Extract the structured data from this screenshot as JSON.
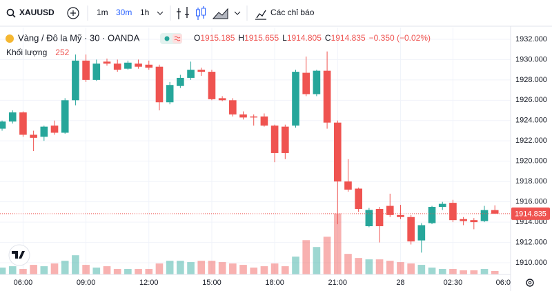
{
  "chart_data": {
    "type": "candlestick",
    "symbol": "XAUUSD",
    "intervals": [
      "1m",
      "30m",
      "1h"
    ],
    "indicators_label": "Các chỉ báo",
    "title": "Vàng / Đô la Mỹ · 30 · OANDA",
    "legend_keys": [
      "O",
      "H",
      "L",
      "C"
    ],
    "change_label": "−0.350 (−0.02%)",
    "volume_label": "Khối lượng",
    "up_color": "#26a69a",
    "down_color": "#ef5350",
    "open": [
      1923.2,
      1923.9,
      1924.8,
      1922.6,
      1922.4,
      1923.5,
      1922.8,
      1926.0,
      1929.9,
      1928.0,
      1929.8,
      1929.6,
      1929.1,
      1929.6,
      1929.5,
      1929.3,
      1925.8,
      1927.4,
      1928.2,
      1929.0,
      1928.8,
      1926.2,
      1926.0,
      1924.6,
      1924.4,
      1924.4,
      1923.5,
      1923.4,
      1923.5,
      1928.7,
      1926.6,
      1928.9,
      1923.8,
      1918.0,
      1917.3,
      1913.6,
      1915.3,
      1915.6,
      1914.7,
      1914.5,
      1912.2,
      1913.9,
      1915.5,
      1915.9,
      1914.3,
      1914.2,
      1914.1,
      1915.185
    ],
    "high": [
      1924.0,
      1925.0,
      1924.9,
      1923.0,
      1923.5,
      1924.0,
      1926.2,
      1930.5,
      1930.5,
      1930.0,
      1930.1,
      1930.0,
      1929.9,
      1930.0,
      1929.9,
      1929.5,
      1927.8,
      1928.5,
      1929.8,
      1929.2,
      1929.0,
      1926.4,
      1926.2,
      1924.9,
      1924.6,
      1924.7,
      1923.6,
      1923.6,
      1929.0,
      1930.3,
      1929.0,
      1930.8,
      1924.0,
      1920.2,
      1917.4,
      1915.4,
      1915.5,
      1916.8,
      1915.7,
      1914.7,
      1913.9,
      1915.6,
      1916.0,
      1916.2,
      1914.5,
      1914.4,
      1915.6,
      1915.655
    ],
    "low": [
      1923.0,
      1923.7,
      1922.4,
      1921.0,
      1922.0,
      1922.6,
      1922.7,
      1925.5,
      1927.8,
      1927.9,
      1929.4,
      1928.8,
      1929.0,
      1929.1,
      1929.0,
      1925.0,
      1925.6,
      1927.2,
      1928.0,
      1928.4,
      1926.0,
      1925.9,
      1924.4,
      1924.1,
      1923.5,
      1923.4,
      1919.9,
      1920.2,
      1923.3,
      1926.4,
      1926.4,
      1923.2,
      1913.8,
      1917.0,
      1915.0,
      1913.5,
      1912.0,
      1914.5,
      1914.3,
      1911.8,
      1911.0,
      1913.8,
      1915.2,
      1914.0,
      1913.7,
      1913.3,
      1914.0,
      1914.805
    ],
    "close": [
      1923.9,
      1924.8,
      1922.6,
      1922.3,
      1923.4,
      1922.8,
      1926.0,
      1929.9,
      1928.0,
      1929.6,
      1929.6,
      1929.0,
      1929.7,
      1929.3,
      1929.2,
      1925.8,
      1927.5,
      1928.2,
      1929.0,
      1928.8,
      1926.1,
      1926.0,
      1924.6,
      1924.3,
      1924.3,
      1923.5,
      1920.8,
      1920.8,
      1928.8,
      1926.6,
      1928.9,
      1923.8,
      1918.0,
      1917.2,
      1915.3,
      1915.2,
      1913.6,
      1914.7,
      1914.5,
      1912.1,
      1913.7,
      1915.5,
      1915.8,
      1914.2,
      1914.1,
      1914.0,
      1915.185,
      1914.835
    ],
    "volume": [
      500,
      600,
      400,
      700,
      600,
      800,
      1000,
      1400,
      700,
      500,
      600,
      400,
      400,
      400,
      400,
      800,
      1000,
      1000,
      900,
      1000,
      1000,
      900,
      800,
      700,
      500,
      600,
      800,
      600,
      1300,
      2500,
      2000,
      2750,
      4450,
      1500,
      1200,
      1100,
      1100,
      1000,
      900,
      800,
      700,
      500,
      400,
      400,
      300,
      300,
      400,
      252
    ],
    "volume_lim": [
      0,
      18000
    ],
    "xlim": [
      -0.2,
      48.5
    ],
    "xticks": [
      {
        "value": 2,
        "label": "06:00"
      },
      {
        "value": 8,
        "label": "09:00"
      },
      {
        "value": 14,
        "label": "12:00"
      },
      {
        "value": 20,
        "label": "15:00"
      },
      {
        "value": 26,
        "label": "18:00"
      },
      {
        "value": 32,
        "label": "21:00"
      },
      {
        "value": 38,
        "label": "28"
      },
      {
        "value": 43,
        "label": "02:30"
      },
      {
        "value": 50,
        "label": "06:0"
      }
    ],
    "ylim": [
      1908.85,
      1933.15
    ],
    "yticks": [
      {
        "value": 1910,
        "label": "1910.000"
      },
      {
        "value": 1912,
        "label": "1912.000"
      },
      {
        "value": 1914,
        "label": "1914.000"
      },
      {
        "value": 1916,
        "label": "1916.000"
      },
      {
        "value": 1918,
        "label": "1918.000"
      },
      {
        "value": 1920,
        "label": "1920.000"
      },
      {
        "value": 1922,
        "label": "1922.000"
      },
      {
        "value": 1924,
        "label": "1924.000"
      },
      {
        "value": 1926,
        "label": "1926.000"
      },
      {
        "value": 1928,
        "label": "1928.000"
      },
      {
        "value": 1930,
        "label": "1930.000"
      },
      {
        "value": 1932,
        "label": "1932.000"
      }
    ],
    "grid": true
  }
}
